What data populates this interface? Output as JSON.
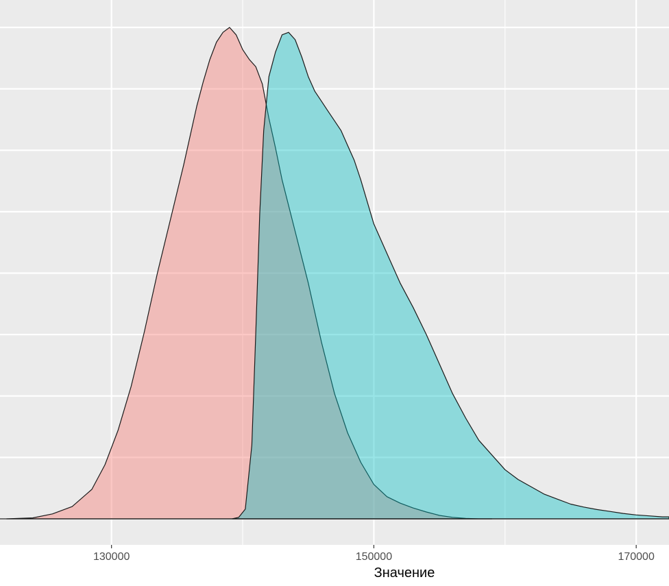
{
  "chart_data": {
    "type": "area",
    "chart_kind": "density",
    "xlabel": "Значение",
    "ylabel": "",
    "xlim": [
      121500,
      172500
    ],
    "ylim": [
      0,
      1
    ],
    "x_ticks": [
      {
        "value": 130000,
        "label": "130000"
      },
      {
        "value": 150000,
        "label": "150000"
      },
      {
        "value": 170000,
        "label": "170000"
      }
    ],
    "x_minor_ticks": [
      140000,
      160000
    ],
    "y_gridlines": [
      0,
      0.125,
      0.25,
      0.375,
      0.5,
      0.625,
      0.75,
      0.875,
      1.0
    ],
    "y_tick_labels_shown": false,
    "grid": true,
    "legend": "none",
    "colors": {
      "panel": "#ebebeb",
      "grid": "#ffffff",
      "outline": "#1a1a1a"
    },
    "series": [
      {
        "color": "#f8766d",
        "opacity": 0.4,
        "x": [
          122000,
          124000,
          125500,
          127000,
          128500,
          129500,
          130500,
          131500,
          132500,
          133500,
          134500,
          135500,
          136500,
          137000,
          137500,
          138000,
          138500,
          139000,
          139500,
          140000,
          140500,
          141000,
          141500,
          142000,
          142500,
          143000,
          144000,
          145000,
          146000,
          147000,
          148000,
          149000,
          150000,
          151000,
          152000,
          153000,
          154000,
          155000,
          156000,
          157000,
          158000,
          159000
        ],
        "y": [
          0,
          0.002,
          0.01,
          0.025,
          0.06,
          0.11,
          0.18,
          0.27,
          0.38,
          0.5,
          0.61,
          0.72,
          0.84,
          0.89,
          0.935,
          0.97,
          0.99,
          1.0,
          0.985,
          0.955,
          0.935,
          0.92,
          0.885,
          0.815,
          0.755,
          0.69,
          0.585,
          0.48,
          0.36,
          0.255,
          0.175,
          0.115,
          0.07,
          0.045,
          0.032,
          0.022,
          0.014,
          0.007,
          0.003,
          0.001,
          0,
          0
        ]
      },
      {
        "color": "#00bfc4",
        "opacity": 0.4,
        "x": [
          139200,
          139700,
          140200,
          140700,
          141000,
          141300,
          141600,
          142000,
          142500,
          143000,
          143500,
          144000,
          144500,
          145000,
          145500,
          146000,
          146500,
          147000,
          147500,
          148000,
          148500,
          149000,
          150000,
          151000,
          152000,
          153000,
          154000,
          155000,
          156000,
          157000,
          158000,
          159000,
          160000,
          161000,
          162000,
          163000,
          164000,
          165000,
          166000,
          167000,
          168000,
          169000,
          170000,
          171000,
          172000,
          172500
        ],
        "y": [
          0,
          0.003,
          0.02,
          0.15,
          0.38,
          0.62,
          0.79,
          0.9,
          0.95,
          0.985,
          0.99,
          0.975,
          0.94,
          0.9,
          0.87,
          0.85,
          0.83,
          0.81,
          0.79,
          0.76,
          0.73,
          0.69,
          0.6,
          0.54,
          0.48,
          0.43,
          0.375,
          0.315,
          0.255,
          0.205,
          0.16,
          0.13,
          0.1,
          0.08,
          0.065,
          0.05,
          0.04,
          0.03,
          0.024,
          0.019,
          0.015,
          0.011,
          0.008,
          0.006,
          0.004,
          0.004
        ]
      }
    ]
  }
}
